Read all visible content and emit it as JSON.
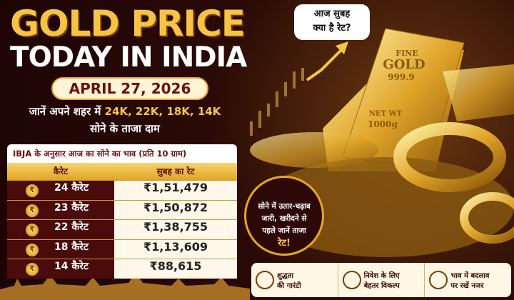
{
  "header": {
    "title_line1": "GOLD PRICE",
    "title_line2": "TODAY IN INDIA",
    "date": "APRIL 27, 2026",
    "subtitle_line1": [
      "जानें अपने शहर में ",
      "24K, 22K, 18K, 14K"
    ],
    "subtitle_line2": "सोने के ताजा दाम"
  },
  "bubble": [
    "आज सुबह",
    "क्या है रेट?"
  ],
  "gold_bar": [
    "FINE",
    "GOLD",
    "999.9",
    "NET WT",
    "1000g"
  ],
  "table": {
    "title": "IBJA के अनुसार आज का सोने का भाव (प्रति 10 ग्राम)",
    "columns": [
      "कैरेट",
      "सुबह का रेट"
    ],
    "rows": [
      [
        "24 कैरेट",
        "₹1,51,479"
      ],
      [
        "23 कैरेट",
        "₹1,50,872"
      ],
      [
        "22 कैरेट",
        "₹1,38,755"
      ],
      [
        "18 कैरेट",
        "₹1,13,609"
      ],
      [
        "14 कैरेट",
        "₹88,615"
      ]
    ]
  },
  "circle": [
    "सोने में उतार-चढ़ाव",
    "जारी, खरीदने से",
    "पहले जानें ताजा",
    "रेट!"
  ],
  "features": [
    [
      "शुद्धता",
      "की गारंटी"
    ],
    [
      "निवेश के लिए",
      "बेहतर विकल्प"
    ],
    [
      "भाव में बदलाव",
      "पर रखें नजर"
    ]
  ]
}
